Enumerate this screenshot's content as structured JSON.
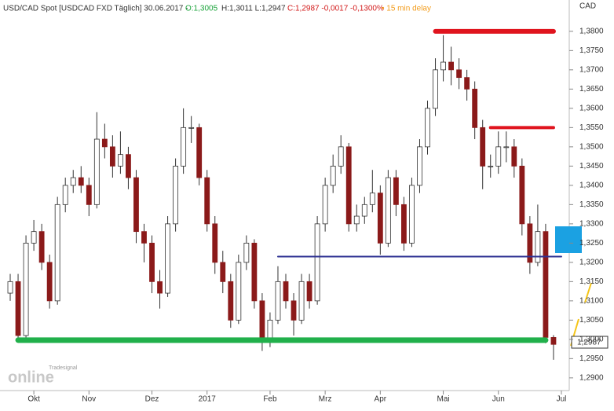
{
  "header": {
    "symbol": "USD/CAD Spot [USDCAD FXD Täglich] 30.06.2017 -",
    "open": "O:1,3005",
    "hl": "H:1,3011 L:1,2947",
    "close": "C:1,2987 -0,0017 -0,1300%",
    "delay": "• 15 min delay"
  },
  "logo": {
    "brand": "Tradesignal",
    "name": "online"
  },
  "chart_data": {
    "type": "candlestick",
    "y_axis_label": "CAD",
    "last_label": "1,2987",
    "categories": [
      null,
      null,
      null,
      "Okt",
      null,
      null,
      null,
      null,
      null,
      null,
      "Nov",
      null,
      null,
      null,
      null,
      null,
      null,
      null,
      "Dez",
      null,
      null,
      null,
      null,
      null,
      null,
      "2017",
      null,
      null,
      null,
      null,
      null,
      null,
      null,
      "Feb",
      null,
      null,
      null,
      null,
      null,
      null,
      "Mrz",
      null,
      null,
      null,
      null,
      null,
      null,
      "Apr",
      null,
      null,
      null,
      null,
      null,
      null,
      null,
      "Mai",
      null,
      null,
      null,
      null,
      null,
      null,
      "Jun",
      null,
      null,
      null,
      null,
      null,
      null,
      null,
      "Jul"
    ],
    "open": [
      1.312,
      1.315,
      1.301,
      1.325,
      1.328,
      1.32,
      1.31,
      1.335,
      1.34,
      1.342,
      1.34,
      1.335,
      1.352,
      1.35,
      1.345,
      1.348,
      1.342,
      1.328,
      1.325,
      1.315,
      1.312,
      1.33,
      1.345,
      1.355,
      1.355,
      1.342,
      1.33,
      1.32,
      1.315,
      1.305,
      1.32,
      1.325,
      1.31,
      1.3,
      1.305,
      1.315,
      1.31,
      1.305,
      1.315,
      1.31,
      1.33,
      1.34,
      1.345,
      1.35,
      1.33,
      1.332,
      1.335,
      1.338,
      1.325,
      1.342,
      1.335,
      1.325,
      1.34,
      1.35,
      1.36,
      1.37,
      1.372,
      1.37,
      1.368,
      1.365,
      1.355,
      1.345,
      1.345,
      1.35,
      1.35,
      1.345,
      1.33,
      1.32,
      1.328,
      1.3005,
      null
    ],
    "high": [
      1.317,
      1.317,
      1.327,
      1.331,
      1.33,
      1.322,
      1.337,
      1.342,
      1.344,
      1.345,
      1.342,
      1.359,
      1.356,
      1.353,
      1.354,
      1.35,
      1.344,
      1.33,
      1.327,
      1.318,
      1.332,
      1.347,
      1.36,
      1.358,
      1.356,
      1.344,
      1.332,
      1.323,
      1.317,
      1.322,
      1.327,
      1.326,
      1.312,
      1.307,
      1.319,
      1.317,
      1.312,
      1.317,
      1.317,
      1.332,
      1.342,
      1.348,
      1.353,
      1.351,
      1.335,
      1.337,
      1.344,
      1.34,
      1.344,
      1.344,
      1.337,
      1.342,
      1.352,
      1.362,
      1.373,
      1.379,
      1.376,
      1.373,
      1.37,
      1.367,
      1.357,
      1.348,
      1.354,
      1.354,
      1.352,
      1.347,
      1.332,
      1.335,
      1.33,
      1.3011,
      null
    ],
    "low": [
      1.31,
      1.2995,
      1.3,
      1.323,
      1.318,
      1.308,
      1.309,
      1.333,
      1.338,
      1.338,
      1.332,
      1.334,
      1.347,
      1.342,
      1.343,
      1.339,
      1.325,
      1.32,
      1.312,
      1.308,
      1.311,
      1.328,
      1.343,
      1.351,
      1.34,
      1.328,
      1.317,
      1.312,
      1.303,
      1.304,
      1.318,
      1.308,
      1.297,
      1.298,
      1.304,
      1.308,
      1.301,
      1.304,
      1.308,
      1.309,
      1.328,
      1.338,
      1.343,
      1.328,
      1.328,
      1.33,
      1.333,
      1.322,
      1.324,
      1.332,
      1.323,
      1.324,
      1.338,
      1.348,
      1.358,
      1.367,
      1.366,
      1.365,
      1.362,
      1.352,
      1.339,
      1.342,
      1.343,
      1.346,
      1.342,
      1.327,
      1.317,
      1.319,
      1.299,
      1.2947,
      null
    ],
    "close": [
      1.315,
      1.301,
      1.325,
      1.328,
      1.32,
      1.31,
      1.335,
      1.34,
      1.342,
      1.34,
      1.335,
      1.352,
      1.35,
      1.345,
      1.348,
      1.342,
      1.328,
      1.325,
      1.315,
      1.312,
      1.33,
      1.345,
      1.355,
      1.355,
      1.342,
      1.33,
      1.32,
      1.315,
      1.305,
      1.32,
      1.325,
      1.31,
      1.3,
      1.305,
      1.315,
      1.31,
      1.305,
      1.315,
      1.31,
      1.33,
      1.34,
      1.345,
      1.35,
      1.33,
      1.332,
      1.335,
      1.338,
      1.325,
      1.342,
      1.335,
      1.325,
      1.34,
      1.35,
      1.36,
      1.37,
      1.372,
      1.37,
      1.368,
      1.365,
      1.355,
      1.345,
      1.345,
      1.35,
      1.35,
      1.345,
      1.33,
      1.32,
      1.328,
      1.3005,
      1.2987,
      null
    ],
    "up_color": "#ffffff",
    "down_color": "#8b1a1a",
    "wick_color": "#333333",
    "ylim": [
      1.2865,
      1.3865
    ],
    "yticks": [
      {
        "value": 1.38,
        "label": "1,3800"
      },
      {
        "value": 1.375,
        "label": "1,3750"
      },
      {
        "value": 1.37,
        "label": "1,3700"
      },
      {
        "value": 1.365,
        "label": "1,3650"
      },
      {
        "value": 1.36,
        "label": "1,3600"
      },
      {
        "value": 1.355,
        "label": "1,3550"
      },
      {
        "value": 1.35,
        "label": "1,3500"
      },
      {
        "value": 1.345,
        "label": "1,3450"
      },
      {
        "value": 1.34,
        "label": "1,3400"
      },
      {
        "value": 1.335,
        "label": "1,3350"
      },
      {
        "value": 1.33,
        "label": "1,3300"
      },
      {
        "value": 1.325,
        "label": "1,3250"
      },
      {
        "value": 1.32,
        "label": "1,3200"
      },
      {
        "value": 1.315,
        "label": "1,3150"
      },
      {
        "value": 1.31,
        "label": "1,3100"
      },
      {
        "value": 1.305,
        "label": "1,3050"
      },
      {
        "value": 1.3,
        "label": "1,3000"
      },
      {
        "value": 1.295,
        "label": "1,2950"
      },
      {
        "value": 1.29,
        "label": "1,2900"
      }
    ],
    "hlines": [
      {
        "value": 1.38,
        "from": 54,
        "to": 69,
        "color": "#e0141e",
        "width": 6
      },
      {
        "value": 1.355,
        "from": 61,
        "to": 69,
        "color": "#e0141e",
        "width": 4
      },
      {
        "value": 1.3215,
        "from": 34,
        "to": 70,
        "color": "#2e3192",
        "width": 2
      },
      {
        "value": 1.2998,
        "from": 1,
        "to": 68,
        "color": "#21b04b",
        "width": 7
      }
    ]
  }
}
